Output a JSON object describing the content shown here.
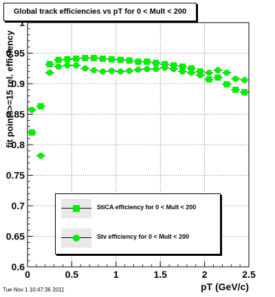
{
  "title": "Global track efficiencies vs pT for 0 < Mult < 200",
  "timestamp": "Tue Nov  1 10:47:36 2011",
  "chart_data": {
    "type": "scatter",
    "xlabel": "pT (GeV/c)",
    "ylabel": "fit points>=15 rel. efficiency",
    "xlim": [
      0,
      2.5
    ],
    "ylim": [
      0.6,
      1.0
    ],
    "grid": true,
    "legend": "bottom-center",
    "x_ticks": [
      "0",
      "0.5",
      "1",
      "1.5",
      "2",
      "2.5"
    ],
    "y_ticks": [
      "0.6",
      "0.65",
      "0.7",
      "0.75",
      "0.8",
      "0.85",
      "0.9",
      "0.95",
      "1"
    ],
    "series": [
      {
        "name": "StiCA efficiency  for 0 < Mult < 200",
        "marker": "square",
        "color": "#00ee00",
        "x": [
          0.05,
          0.15,
          0.25,
          0.35,
          0.45,
          0.55,
          0.65,
          0.75,
          0.85,
          0.95,
          1.05,
          1.15,
          1.25,
          1.35,
          1.45,
          1.55,
          1.65,
          1.75,
          1.85,
          1.95,
          2.05,
          2.15,
          2.25,
          2.35,
          2.45
        ],
        "y": [
          0.82,
          0.863,
          0.932,
          0.939,
          0.94,
          0.941,
          0.942,
          0.942,
          0.941,
          0.94,
          0.939,
          0.938,
          0.936,
          0.936,
          0.934,
          0.932,
          0.93,
          0.928,
          0.925,
          0.92,
          0.907,
          0.91,
          0.899,
          0.89,
          0.886
        ]
      },
      {
        "name": "Stv efficiency  for 0 < Mult < 200",
        "marker": "circle",
        "color": "#00ee00",
        "x": [
          0.05,
          0.15,
          0.25,
          0.35,
          0.45,
          0.55,
          0.65,
          0.75,
          0.85,
          0.95,
          1.05,
          1.15,
          1.25,
          1.35,
          1.45,
          1.55,
          1.65,
          1.75,
          1.85,
          1.95,
          2.05,
          2.15,
          2.25,
          2.35,
          2.45
        ],
        "y": [
          0.857,
          0.782,
          0.918,
          0.928,
          0.93,
          0.93,
          0.925,
          0.922,
          0.92,
          0.921,
          0.92,
          0.921,
          0.923,
          0.924,
          0.924,
          0.926,
          0.924,
          0.92,
          0.918,
          0.914,
          0.918,
          0.922,
          0.918,
          0.908,
          0.906
        ]
      }
    ]
  }
}
